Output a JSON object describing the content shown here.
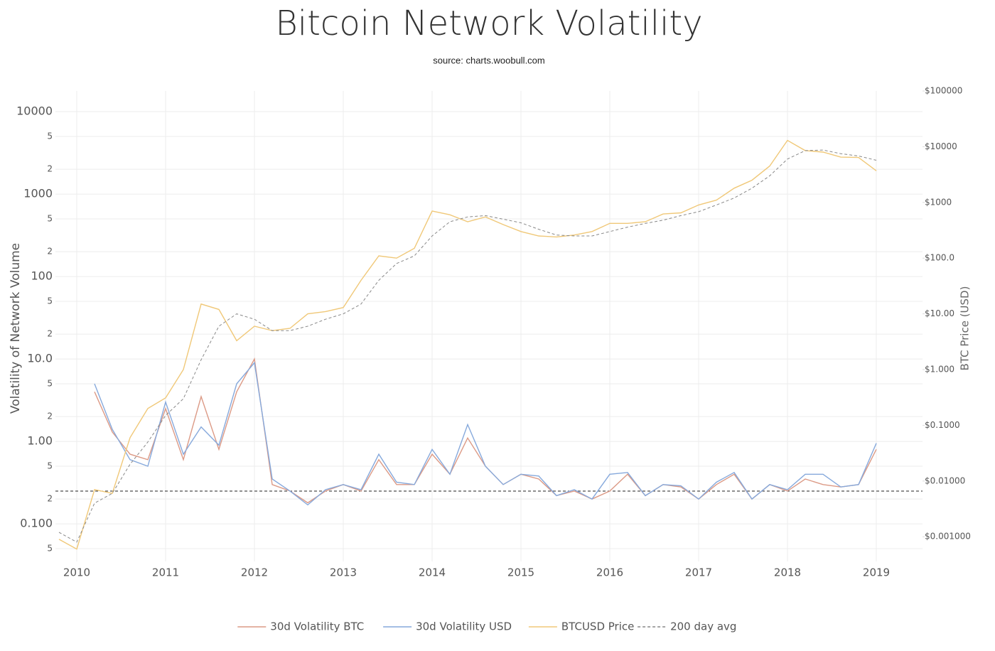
{
  "chart_data": {
    "type": "line",
    "title": "Bitcoin Network Volatility",
    "subtitle": "source: charts.woobull.com",
    "y_label": "Volatility of Network Volume",
    "y2_label": "BTC Price (USD)",
    "log_y": true,
    "log_y2": true,
    "grid": true,
    "legend": "bottom",
    "xlim": [
      2009.76,
      2019.52
    ],
    "xticks": [
      2010,
      2011,
      2012,
      2013,
      2014,
      2015,
      2016,
      2017,
      2018,
      2019
    ],
    "ylim": [
      0.035,
      17800
    ],
    "yticks": [
      10000,
      {
        "value": 5000,
        "label": "5"
      },
      {
        "value": 2000,
        "label": "2"
      },
      1000,
      {
        "value": 500,
        "label": "5"
      },
      {
        "value": 200,
        "label": "2"
      },
      100,
      {
        "value": 50,
        "label": "5"
      },
      {
        "value": 20,
        "label": "2"
      },
      {
        "value": 10,
        "label": "10.0"
      },
      5,
      2,
      {
        "value": 1,
        "label": "1.00"
      },
      {
        "value": 0.5,
        "label": "5"
      },
      {
        "value": 0.2,
        "label": "2"
      },
      {
        "value": 0.1,
        "label": "0.100"
      },
      {
        "value": 0.05,
        "label": "5"
      }
    ],
    "y2lim": [
      0.00036,
      100000
    ],
    "y2ticks": [
      {
        "value": 100000,
        "label": "$100000"
      },
      {
        "value": 10000,
        "label": "$10000"
      },
      {
        "value": 1000,
        "label": "$1000"
      },
      {
        "value": 100,
        "label": "$100.0"
      },
      {
        "value": 10,
        "label": "$10.00"
      },
      {
        "value": 1,
        "label": "$1.000"
      },
      {
        "value": 0.1,
        "label": "$0.1000"
      },
      {
        "value": 0.01,
        "label": "$0.01000"
      },
      {
        "value": 0.001,
        "label": "$0.001000"
      }
    ],
    "reference_line": 0.25,
    "x": [
      2009.8,
      2010.0,
      2010.2,
      2010.4,
      2010.6,
      2010.8,
      2011.0,
      2011.2,
      2011.4,
      2011.6,
      2011.8,
      2012.0,
      2012.2,
      2012.4,
      2012.6,
      2012.8,
      2013.0,
      2013.2,
      2013.4,
      2013.6,
      2013.8,
      2014.0,
      2014.2,
      2014.4,
      2014.6,
      2014.8,
      2015.0,
      2015.2,
      2015.4,
      2015.6,
      2015.8,
      2016.0,
      2016.2,
      2016.4,
      2016.6,
      2016.8,
      2017.0,
      2017.2,
      2017.4,
      2017.6,
      2017.8,
      2018.0,
      2018.2,
      2018.4,
      2018.6,
      2018.8,
      2019.0
    ],
    "series": [
      {
        "name": "30d Volatility BTC",
        "color": "#dc9a86",
        "axis": "y",
        "values": [
          null,
          null,
          4,
          1.3,
          0.7,
          0.6,
          2.5,
          0.6,
          3.5,
          0.8,
          4,
          10,
          0.3,
          0.25,
          0.18,
          0.25,
          0.3,
          0.25,
          0.6,
          0.3,
          0.3,
          0.7,
          0.4,
          1.1,
          0.5,
          0.3,
          0.4,
          0.35,
          0.22,
          0.25,
          0.2,
          0.25,
          0.4,
          0.22,
          0.3,
          0.28,
          0.2,
          0.3,
          0.4,
          0.2,
          0.3,
          0.25,
          0.35,
          0.3,
          0.28,
          0.3,
          0.8
        ]
      },
      {
        "name": "30d Volatility USD",
        "color": "#86a9dc",
        "axis": "y",
        "values": [
          null,
          null,
          5,
          1.4,
          0.6,
          0.5,
          3,
          0.7,
          1.5,
          0.9,
          5,
          9,
          0.35,
          0.25,
          0.17,
          0.26,
          0.3,
          0.26,
          0.7,
          0.32,
          0.3,
          0.8,
          0.4,
          1.6,
          0.5,
          0.3,
          0.4,
          0.38,
          0.22,
          0.26,
          0.2,
          0.4,
          0.42,
          0.22,
          0.3,
          0.29,
          0.2,
          0.32,
          0.42,
          0.2,
          0.3,
          0.26,
          0.4,
          0.4,
          0.28,
          0.3,
          0.95
        ]
      },
      {
        "name": "BTCUSD Price",
        "color": "#f0c878",
        "axis": "y2",
        "values": [
          0.0009,
          0.0006,
          0.007,
          0.006,
          0.06,
          0.2,
          0.31,
          1.0,
          15,
          12,
          3.3,
          6,
          5,
          5.5,
          10,
          11,
          13,
          40,
          110,
          100,
          150,
          700,
          600,
          450,
          550,
          400,
          300,
          250,
          240,
          260,
          300,
          420,
          420,
          450,
          620,
          650,
          900,
          1100,
          1800,
          2500,
          4500,
          13000,
          8500,
          8000,
          6500,
          6400,
          3700
        ]
      },
      {
        "name": "200 day avg",
        "color": "#888888",
        "axis": "y2",
        "dashed": true,
        "values": [
          0.0012,
          0.0008,
          0.004,
          0.006,
          0.02,
          0.05,
          0.15,
          0.3,
          1.5,
          6,
          10,
          8,
          5,
          5,
          6,
          8,
          10,
          15,
          40,
          80,
          110,
          250,
          450,
          550,
          580,
          500,
          430,
          330,
          260,
          250,
          250,
          300,
          360,
          420,
          480,
          580,
          680,
          900,
          1200,
          1800,
          3000,
          6000,
          8500,
          8700,
          7500,
          6800,
          5700
        ]
      }
    ]
  }
}
